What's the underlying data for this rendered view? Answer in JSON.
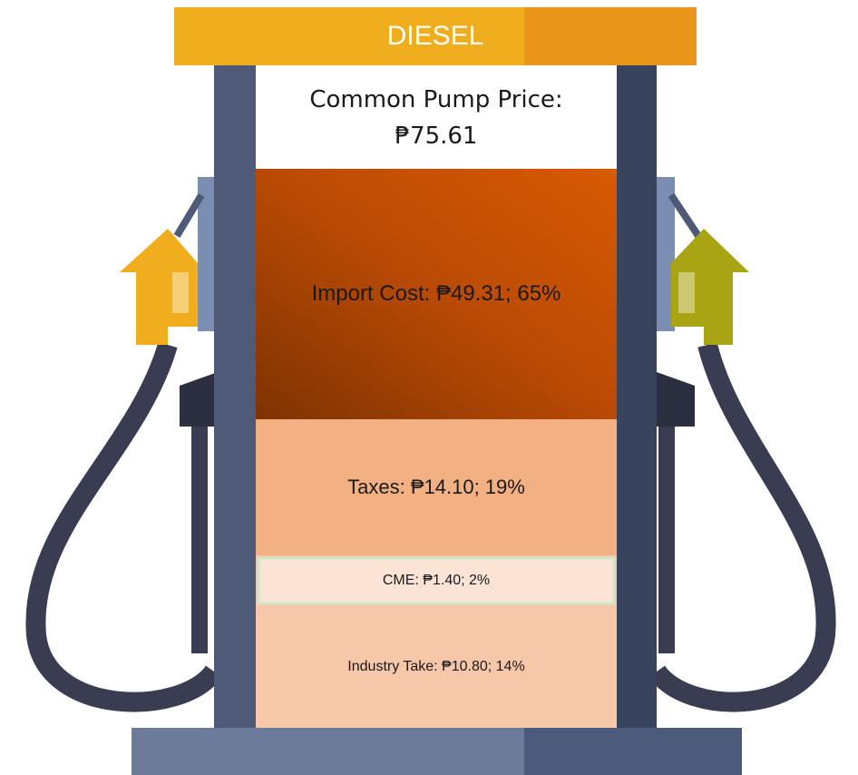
{
  "title": "DIESEL",
  "price": {
    "label": "Common Pump Price:",
    "value": "₱75.61"
  },
  "segments": [
    {
      "label": "Import Cost: ₱49.31; 65%"
    },
    {
      "label": "Taxes: ₱14.10; 19%"
    },
    {
      "label": "CME: ₱1.40; 2%"
    },
    {
      "label": "Industry Take: ₱10.80; 14%"
    }
  ]
}
